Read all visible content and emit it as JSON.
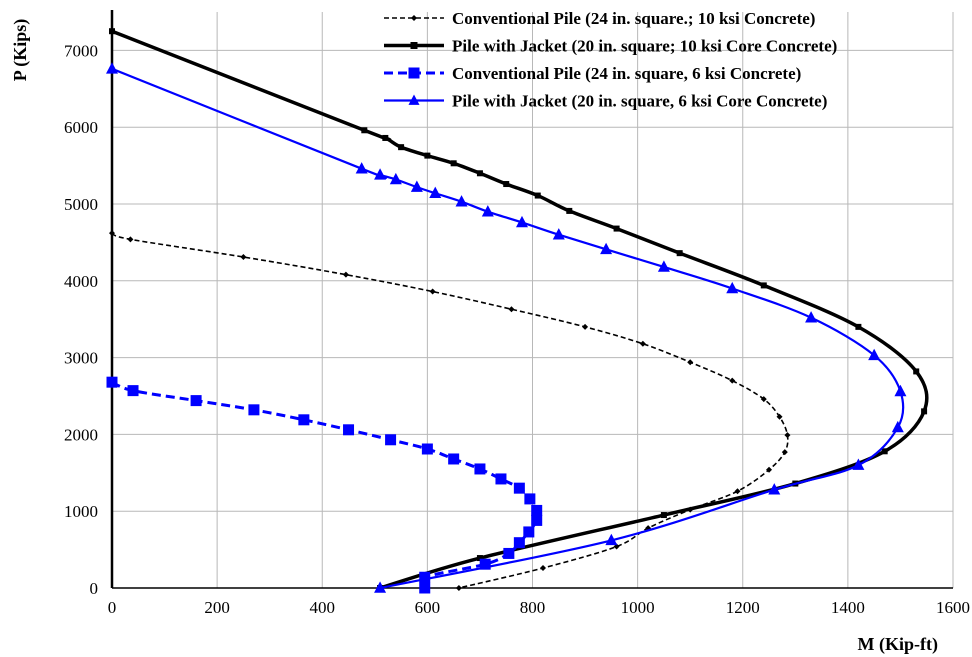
{
  "chart_data": {
    "type": "line",
    "xlabel": "M (Kip-ft)",
    "ylabel": "P (Kips)",
    "xlim": [
      0,
      1600
    ],
    "ylim": [
      0,
      7500
    ],
    "xticks": [
      0,
      200,
      400,
      600,
      800,
      1000,
      1200,
      1400,
      1600
    ],
    "yticks": [
      0,
      1000,
      2000,
      3000,
      4000,
      5000,
      6000,
      7000
    ],
    "grid": true,
    "legend_position": "top-right",
    "series": [
      {
        "name": "Conventional Pile (24 in. square.; 10 ksi Concrete)",
        "color": "#000000",
        "line_style": "dashed",
        "marker": "diamond",
        "points": [
          [
            0,
            4620
          ],
          [
            35,
            4540
          ],
          [
            250,
            4310
          ],
          [
            445,
            4080
          ],
          [
            610,
            3860
          ],
          [
            760,
            3630
          ],
          [
            900,
            3400
          ],
          [
            1010,
            3180
          ],
          [
            1100,
            2940
          ],
          [
            1180,
            2700
          ],
          [
            1240,
            2460
          ],
          [
            1270,
            2230
          ],
          [
            1285,
            1990
          ],
          [
            1280,
            1770
          ],
          [
            1250,
            1540
          ],
          [
            1190,
            1260
          ],
          [
            1100,
            1020
          ],
          [
            1020,
            780
          ],
          [
            960,
            540
          ],
          [
            820,
            260
          ],
          [
            660,
            0
          ]
        ]
      },
      {
        "name": "Pile with Jacket (20 in. square; 10 ksi Core Concrete)",
        "color": "#000000",
        "line_style": "solid",
        "marker": "square",
        "points": [
          [
            0,
            7250
          ],
          [
            480,
            5960
          ],
          [
            520,
            5860
          ],
          [
            550,
            5740
          ],
          [
            600,
            5630
          ],
          [
            650,
            5530
          ],
          [
            700,
            5400
          ],
          [
            750,
            5260
          ],
          [
            810,
            5110
          ],
          [
            870,
            4910
          ],
          [
            960,
            4680
          ],
          [
            1080,
            4360
          ],
          [
            1240,
            3940
          ],
          [
            1420,
            3400
          ],
          [
            1530,
            2820
          ],
          [
            1545,
            2300
          ],
          [
            1470,
            1780
          ],
          [
            1300,
            1360
          ],
          [
            1050,
            950
          ],
          [
            700,
            390
          ],
          [
            510,
            0
          ]
        ]
      },
      {
        "name": "Conventional Pile (24 in. square, 6 ksi Concrete)",
        "color": "#0000ff",
        "line_style": "dashed",
        "marker": "square",
        "points": [
          [
            0,
            2680
          ],
          [
            40,
            2570
          ],
          [
            160,
            2440
          ],
          [
            270,
            2320
          ],
          [
            365,
            2190
          ],
          [
            450,
            2060
          ],
          [
            530,
            1930
          ],
          [
            600,
            1810
          ],
          [
            650,
            1680
          ],
          [
            700,
            1550
          ],
          [
            740,
            1420
          ],
          [
            775,
            1300
          ],
          [
            795,
            1160
          ],
          [
            808,
            1010
          ],
          [
            808,
            880
          ],
          [
            793,
            730
          ],
          [
            775,
            590
          ],
          [
            755,
            450
          ],
          [
            710,
            310
          ],
          [
            595,
            140
          ],
          [
            595,
            0
          ]
        ]
      },
      {
        "name": "Pile with Jacket (20 in. square, 6 ksi Core Concrete)",
        "color": "#0000ff",
        "line_style": "solid",
        "marker": "triangle",
        "points": [
          [
            0,
            6760
          ],
          [
            475,
            5460
          ],
          [
            510,
            5380
          ],
          [
            540,
            5320
          ],
          [
            580,
            5220
          ],
          [
            615,
            5140
          ],
          [
            665,
            5030
          ],
          [
            715,
            4900
          ],
          [
            780,
            4760
          ],
          [
            850,
            4600
          ],
          [
            940,
            4410
          ],
          [
            1050,
            4180
          ],
          [
            1180,
            3900
          ],
          [
            1330,
            3520
          ],
          [
            1450,
            3030
          ],
          [
            1500,
            2560
          ],
          [
            1495,
            2090
          ],
          [
            1420,
            1600
          ],
          [
            1260,
            1280
          ],
          [
            950,
            620
          ],
          [
            510,
            0
          ]
        ]
      }
    ]
  }
}
